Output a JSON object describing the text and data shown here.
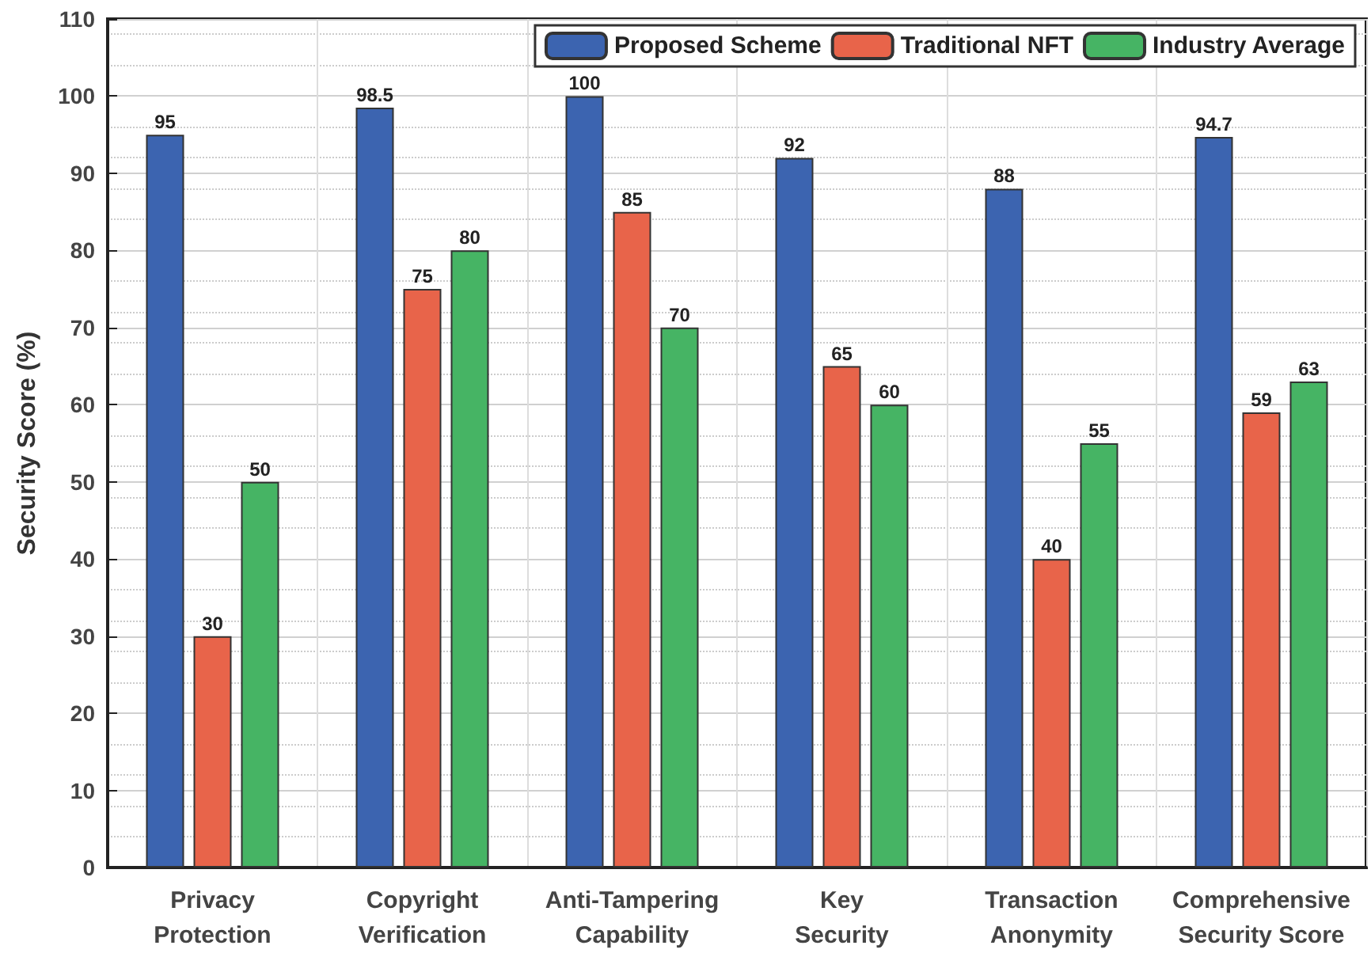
{
  "chart_data": {
    "type": "bar",
    "ylabel": "Security Score (%)",
    "categories": [
      "Privacy\nProtection",
      "Copyright\nVerification",
      "Anti-Tampering\nCapability",
      "Key\nSecurity",
      "Transaction\nAnonymity",
      "Comprehensive\nSecurity Score"
    ],
    "series": [
      {
        "name": "Proposed Scheme",
        "color": "#3c64b0",
        "values": [
          95,
          98.5,
          100,
          92,
          88,
          94.7
        ]
      },
      {
        "name": "Traditional NFT",
        "color": "#e8644a",
        "values": [
          30,
          75,
          85,
          65,
          40,
          59
        ]
      },
      {
        "name": "Industry Average",
        "color": "#46b464",
        "values": [
          50,
          80,
          70,
          60,
          55,
          63
        ]
      }
    ],
    "ylim": [
      0,
      110
    ],
    "yticks": [
      0,
      10,
      20,
      30,
      40,
      50,
      60,
      70,
      80,
      90,
      100,
      110
    ],
    "grid": true,
    "legend": "top right",
    "data_labels": true
  }
}
